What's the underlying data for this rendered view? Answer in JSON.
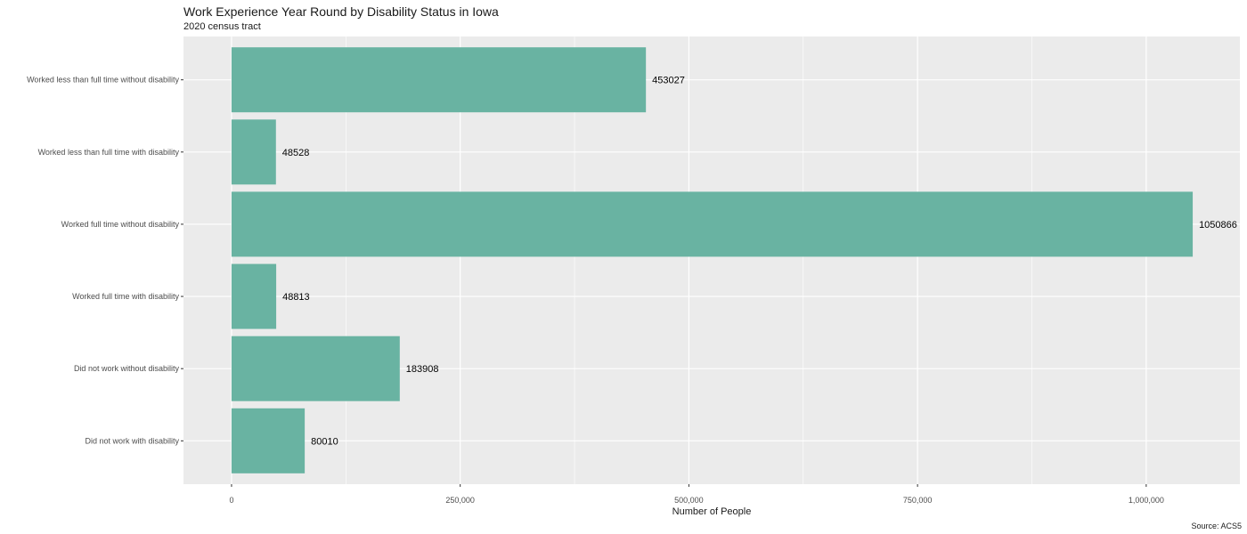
{
  "chart_data": {
    "type": "bar",
    "orientation": "horizontal",
    "title": "Work Experience Year Round by Disability Status in Iowa",
    "subtitle": "2020 census tract",
    "caption": "Source: ACS5",
    "xlabel": "Number of People",
    "ylabel": "",
    "categories": [
      "Worked less than full time without disability",
      "Worked less than full time with disability",
      "Worked full time without disability",
      "Worked full time with disability",
      "Did not work without disability",
      "Did not work with disability"
    ],
    "values": [
      453027,
      48528,
      1050866,
      48813,
      183908,
      80010
    ],
    "data_labels": [
      "453027",
      "48528",
      "1050866",
      "48813",
      "183908",
      "80010"
    ],
    "x_ticks": [
      0,
      250000,
      500000,
      750000,
      1000000
    ],
    "x_tick_labels": [
      "0",
      "250,000",
      "500,000",
      "750,000",
      "1,000,000"
    ],
    "xlim": [
      -52543,
      1102409
    ],
    "grid": true,
    "legend": "none",
    "colors": {
      "bar": "#69b3a2",
      "panel": "#ebebeb",
      "grid": "#ffffff"
    }
  }
}
